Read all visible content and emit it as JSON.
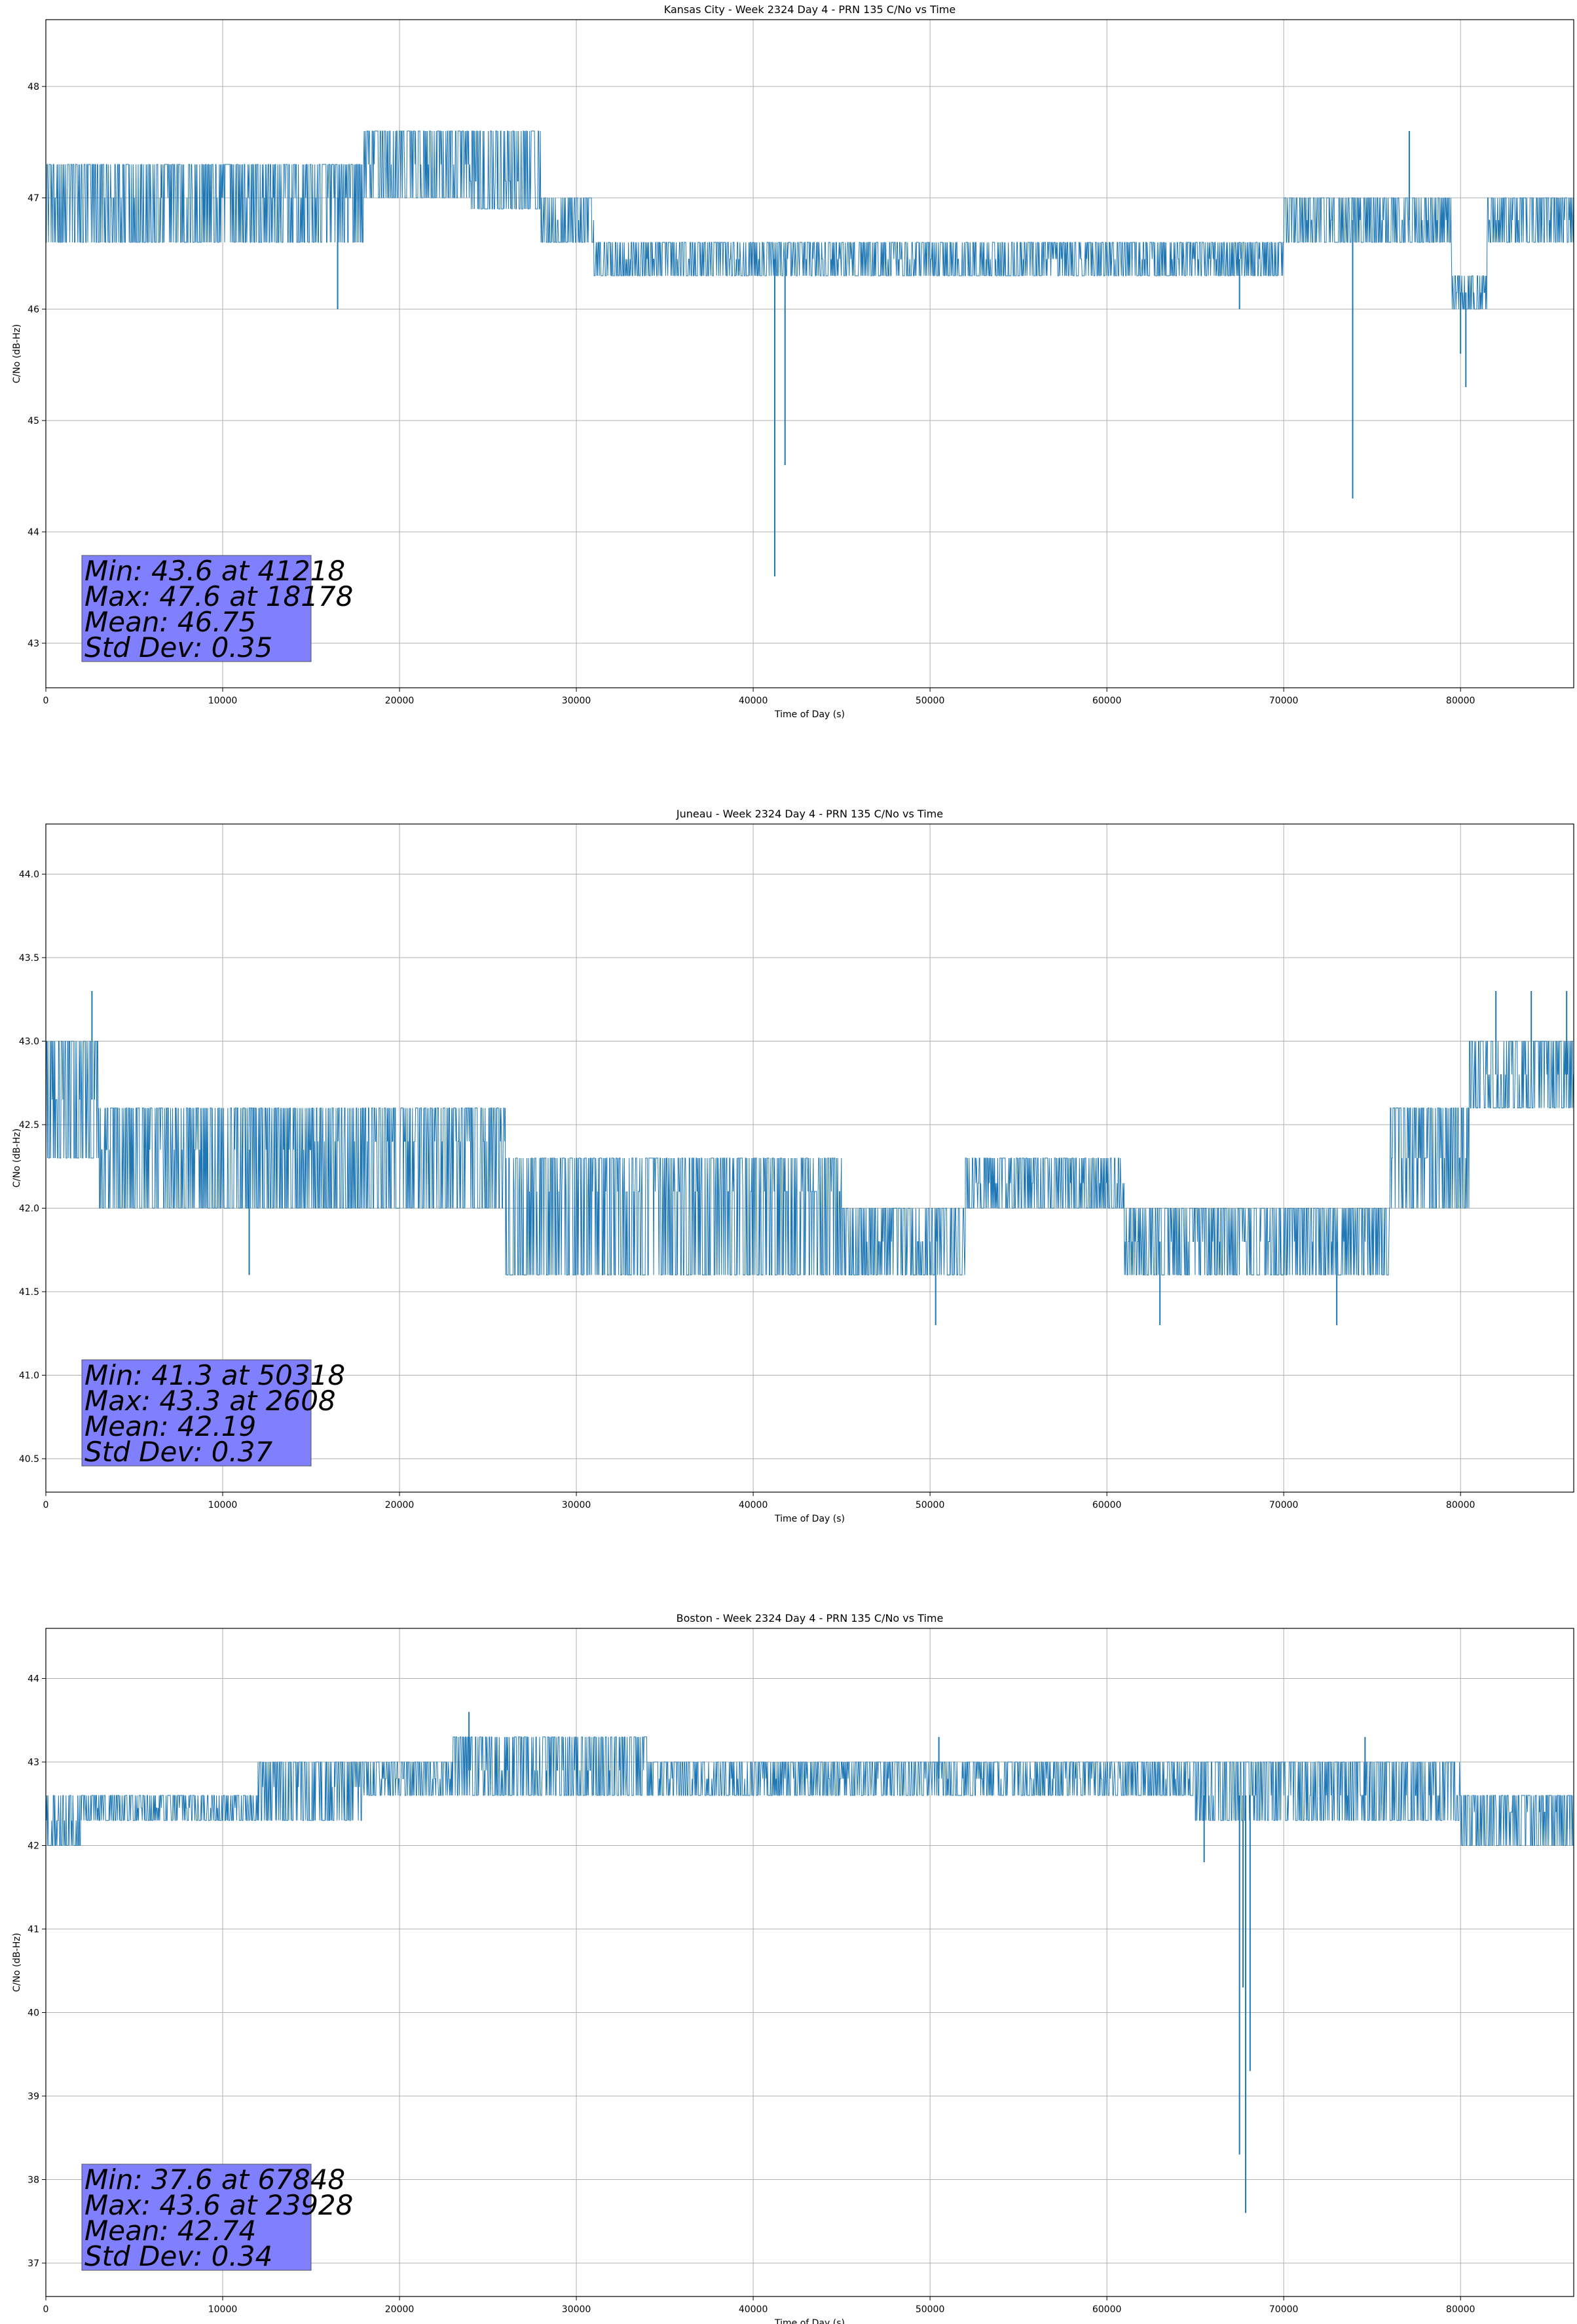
{
  "colors": {
    "series": "#1f77b4",
    "stats_box_fill": "#8080ff",
    "grid": "#b0b0b0",
    "axes": "#000000"
  },
  "chart_data": [
    {
      "type": "line",
      "title": "Kansas City - Week 2324 Day 4 - PRN 135 C/No vs Time",
      "xlabel": "Time of Day (s)",
      "ylabel": "C/No (dB-Hz)",
      "xlim": [
        0,
        86400
      ],
      "ylim": [
        42.6,
        48.6
      ],
      "xticks": [
        0,
        10000,
        20000,
        30000,
        40000,
        50000,
        60000,
        70000,
        80000
      ],
      "yticks": [
        43,
        44,
        45,
        46,
        47,
        48
      ],
      "yticks_labels": [
        "43",
        "44",
        "45",
        "46",
        "47",
        "48"
      ],
      "grid": true,
      "stats": [
        "Min: 43.6 at 41218",
        "Max: 47.6 at 18178",
        "Mean: 46.75",
        "Std Dev: 0.35"
      ],
      "series": [
        {
          "segments": [
            {
              "x0": 0,
              "x1": 16500,
              "lo": 46.6,
              "hi": 47.3,
              "mid": 47.0
            },
            {
              "x0": 16500,
              "x1": 18000,
              "lo": 46.6,
              "hi": 47.3,
              "mid": 47.0
            },
            {
              "x0": 18000,
              "x1": 24000,
              "lo": 47.0,
              "hi": 47.6,
              "mid": 47.3
            },
            {
              "x0": 24000,
              "x1": 28000,
              "lo": 46.9,
              "hi": 47.6,
              "mid": 47.15
            },
            {
              "x0": 28000,
              "x1": 31000,
              "lo": 46.6,
              "hi": 47.0,
              "mid": 46.8
            },
            {
              "x0": 31000,
              "x1": 70000,
              "lo": 46.3,
              "hi": 46.6,
              "mid": 46.45
            },
            {
              "x0": 70000,
              "x1": 79500,
              "lo": 46.6,
              "hi": 47.0,
              "mid": 46.8
            },
            {
              "x0": 79500,
              "x1": 81500,
              "lo": 46.0,
              "hi": 46.3,
              "mid": 46.15
            },
            {
              "x0": 81500,
              "x1": 86400,
              "lo": 46.6,
              "hi": 47.0,
              "mid": 46.8
            }
          ],
          "spikes": [
            {
              "x": 16500,
              "y": 46.0
            },
            {
              "x": 41218,
              "y": 43.6
            },
            {
              "x": 41800,
              "y": 44.6
            },
            {
              "x": 73900,
              "y": 44.3
            },
            {
              "x": 80300,
              "y": 45.3
            },
            {
              "x": 77100,
              "y": 47.6
            },
            {
              "x": 80000,
              "y": 45.6
            },
            {
              "x": 67500,
              "y": 46.0
            }
          ]
        }
      ]
    },
    {
      "type": "line",
      "title": "Juneau - Week 2324 Day 4 - PRN 135 C/No vs Time",
      "xlabel": "Time of Day (s)",
      "ylabel": "C/No (dB-Hz)",
      "xlim": [
        0,
        86400
      ],
      "ylim": [
        40.3,
        44.3
      ],
      "xticks": [
        0,
        10000,
        20000,
        30000,
        40000,
        50000,
        60000,
        70000,
        80000
      ],
      "yticks": [
        40.5,
        41.0,
        41.5,
        42.0,
        42.5,
        43.0,
        43.5,
        44.0
      ],
      "yticks_labels": [
        "40.5",
        "41.0",
        "41.5",
        "42.0",
        "42.5",
        "43.0",
        "43.5",
        "44.0"
      ],
      "grid": true,
      "stats": [
        "Min: 41.3 at 50318",
        "Max: 43.3 at 2608",
        "Mean: 42.19",
        "Std Dev: 0.37"
      ],
      "series": [
        {
          "segments": [
            {
              "x0": 0,
              "x1": 3000,
              "lo": 42.3,
              "hi": 43.0,
              "mid": 42.65
            },
            {
              "x0": 3000,
              "x1": 15000,
              "lo": 42.0,
              "hi": 42.6,
              "mid": 42.35
            },
            {
              "x0": 15000,
              "x1": 26000,
              "lo": 42.0,
              "hi": 42.6,
              "mid": 42.4
            },
            {
              "x0": 26000,
              "x1": 45000,
              "lo": 41.6,
              "hi": 42.3,
              "mid": 42.1
            },
            {
              "x0": 45000,
              "x1": 52000,
              "lo": 41.6,
              "hi": 42.0,
              "mid": 41.8
            },
            {
              "x0": 52000,
              "x1": 61000,
              "lo": 42.0,
              "hi": 42.3,
              "mid": 42.15
            },
            {
              "x0": 61000,
              "x1": 65000,
              "lo": 41.6,
              "hi": 42.0,
              "mid": 41.8
            },
            {
              "x0": 65000,
              "x1": 76000,
              "lo": 41.6,
              "hi": 42.0,
              "mid": 41.8
            },
            {
              "x0": 76000,
              "x1": 80500,
              "lo": 42.0,
              "hi": 42.6,
              "mid": 42.3
            },
            {
              "x0": 80500,
              "x1": 86400,
              "lo": 42.6,
              "hi": 43.0,
              "mid": 42.8
            }
          ],
          "spikes": [
            {
              "x": 2608,
              "y": 43.3
            },
            {
              "x": 11500,
              "y": 41.6
            },
            {
              "x": 50318,
              "y": 41.3
            },
            {
              "x": 63000,
              "y": 41.3
            },
            {
              "x": 73000,
              "y": 41.3
            },
            {
              "x": 84000,
              "y": 43.3
            },
            {
              "x": 86000,
              "y": 43.3
            },
            {
              "x": 82000,
              "y": 43.3
            }
          ]
        }
      ]
    },
    {
      "type": "line",
      "title": "Boston - Week 2324 Day 4 - PRN 135 C/No vs Time",
      "xlabel": "Time of Day (s)",
      "ylabel": "C/No (dB-Hz)",
      "xlim": [
        0,
        86400
      ],
      "ylim": [
        36.6,
        44.6
      ],
      "xticks": [
        0,
        10000,
        20000,
        30000,
        40000,
        50000,
        60000,
        70000,
        80000
      ],
      "yticks": [
        37,
        38,
        39,
        40,
        41,
        42,
        43,
        44
      ],
      "yticks_labels": [
        "37",
        "38",
        "39",
        "40",
        "41",
        "42",
        "43",
        "44"
      ],
      "grid": true,
      "stats": [
        "Min: 37.6 at 67848",
        "Max: 43.6 at 23928",
        "Mean: 42.74",
        "Std Dev: 0.34"
      ],
      "series": [
        {
          "segments": [
            {
              "x0": 0,
              "x1": 2000,
              "lo": 42.0,
              "hi": 42.6,
              "mid": 42.3
            },
            {
              "x0": 2000,
              "x1": 12000,
              "lo": 42.3,
              "hi": 42.6,
              "mid": 42.45
            },
            {
              "x0": 12000,
              "x1": 18000,
              "lo": 42.3,
              "hi": 43.0,
              "mid": 42.7
            },
            {
              "x0": 18000,
              "x1": 23000,
              "lo": 42.6,
              "hi": 43.0,
              "mid": 42.8
            },
            {
              "x0": 23000,
              "x1": 34000,
              "lo": 42.6,
              "hi": 43.3,
              "mid": 42.9
            },
            {
              "x0": 34000,
              "x1": 65000,
              "lo": 42.6,
              "hi": 43.0,
              "mid": 42.8
            },
            {
              "x0": 65000,
              "x1": 80000,
              "lo": 42.3,
              "hi": 43.0,
              "mid": 42.6
            },
            {
              "x0": 80000,
              "x1": 86400,
              "lo": 42.0,
              "hi": 42.6,
              "mid": 42.4
            }
          ],
          "spikes": [
            {
              "x": 23928,
              "y": 43.6
            },
            {
              "x": 67500,
              "y": 38.3
            },
            {
              "x": 67848,
              "y": 37.6
            },
            {
              "x": 68100,
              "y": 39.3
            },
            {
              "x": 67700,
              "y": 40.3
            },
            {
              "x": 65500,
              "y": 41.8
            },
            {
              "x": 74600,
              "y": 43.3
            },
            {
              "x": 50500,
              "y": 43.3
            }
          ]
        }
      ]
    }
  ]
}
